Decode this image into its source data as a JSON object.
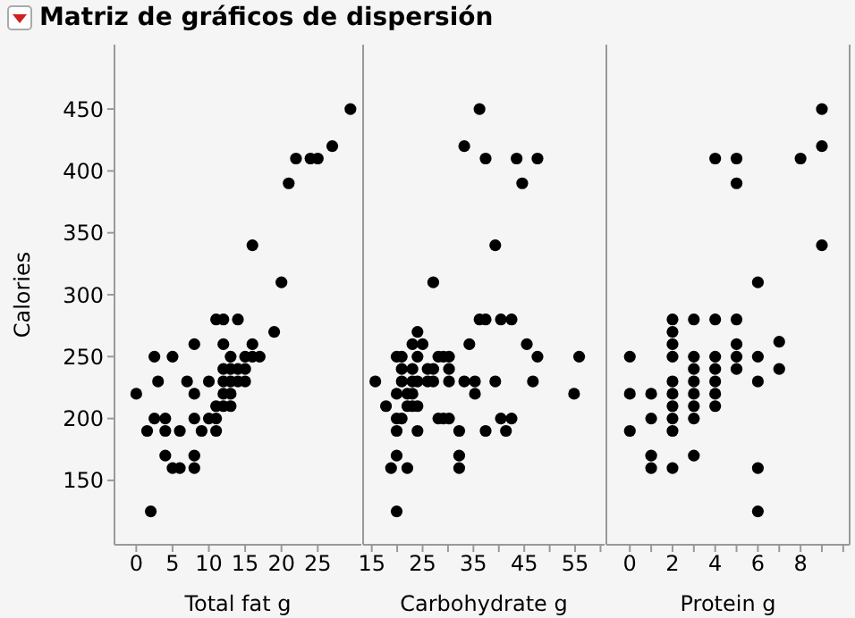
{
  "chart_data": [
    {
      "type": "scatter",
      "title": "Matriz de gráficos de dispersión",
      "xlabel": "Total fat g",
      "ylabel": "Calories",
      "color": "#000000",
      "marker": "circle",
      "grid": false,
      "x": [
        0,
        1.5,
        2,
        2.5,
        2.5,
        3,
        4,
        4,
        4,
        5,
        5,
        6,
        6,
        7,
        8,
        8,
        8,
        8,
        8,
        9,
        10,
        10,
        11,
        11,
        11,
        11,
        12,
        12,
        12,
        12,
        12,
        12,
        13,
        13,
        13,
        13,
        13,
        14,
        14,
        14,
        15,
        15,
        15,
        16,
        16,
        16,
        17,
        19,
        20,
        21,
        22,
        24,
        25,
        27,
        29.5
      ],
      "values": [
        220,
        190,
        125,
        250,
        200,
        230,
        200,
        190,
        170,
        250,
        160,
        160,
        190,
        230,
        260,
        220,
        200,
        170,
        160,
        190,
        230,
        200,
        280,
        210,
        200,
        190,
        280,
        260,
        240,
        230,
        220,
        210,
        250,
        240,
        230,
        220,
        210,
        280,
        240,
        230,
        250,
        240,
        230,
        340,
        260,
        250,
        250,
        270,
        310,
        390,
        410,
        410,
        410,
        420,
        450
      ],
      "xlim": [
        -3,
        31
      ],
      "xticks": [
        0,
        5,
        10,
        15,
        20,
        25
      ],
      "ylim": [
        98,
        502
      ],
      "yticks": [
        150,
        200,
        250,
        300,
        350,
        400,
        450
      ]
    },
    {
      "type": "scatter",
      "xlabel": "Carbohydrate g",
      "color": "#000000",
      "marker": "circle",
      "grid": false,
      "tick_labels": "x",
      "x": [
        36.2,
        33.2,
        37.4,
        43.5,
        47.6,
        44.6,
        39.3,
        27.1,
        36.2,
        37.4,
        40.4,
        42.5,
        24,
        23,
        25,
        34.2,
        45.5,
        19.9,
        20.9,
        24,
        28.1,
        29.1,
        30.2,
        47.6,
        55.8,
        20.9,
        23,
        26,
        27.1,
        30.2,
        15.7,
        20.9,
        23,
        24,
        26,
        27.1,
        30.2,
        33.2,
        35.3,
        39.3,
        46.7,
        19.9,
        22,
        23,
        35.3,
        54.8,
        17.8,
        22,
        23,
        24,
        19.9,
        20.9,
        28.1,
        29.1,
        30.2,
        40.4,
        42.5,
        19.9,
        24,
        32.2,
        37.4,
        41.4,
        19.9,
        32.2,
        18.8,
        22,
        32.2,
        19.9
      ],
      "values": [
        450,
        420,
        410,
        410,
        410,
        390,
        340,
        310,
        280,
        280,
        280,
        280,
        270,
        260,
        260,
        260,
        260,
        250,
        250,
        250,
        250,
        250,
        250,
        250,
        250,
        240,
        240,
        240,
        240,
        240,
        230,
        230,
        230,
        230,
        230,
        230,
        230,
        230,
        230,
        230,
        230,
        220,
        220,
        220,
        220,
        220,
        210,
        210,
        210,
        210,
        200,
        200,
        200,
        200,
        200,
        200,
        200,
        190,
        190,
        190,
        190,
        190,
        170,
        170,
        160,
        160,
        160,
        125
      ],
      "xlim": [
        13.3,
        60.8
      ],
      "xticks": [
        15,
        {
          "value": 20,
          "label": null
        },
        25,
        {
          "value": 30,
          "label": null
        },
        35,
        {
          "value": 40,
          "label": null
        },
        45,
        {
          "value": 50,
          "label": null
        },
        55,
        {
          "value": 60,
          "label": null
        }
      ],
      "ylim": [
        98,
        502
      ]
    },
    {
      "type": "scatter",
      "xlabel": "Protein g",
      "color": "#000000",
      "marker": "circle",
      "grid": false,
      "tick_labels": "x",
      "x": [
        9,
        9,
        4,
        5,
        8,
        5,
        9,
        6,
        2,
        3,
        4,
        5,
        2,
        2,
        5,
        7,
        0,
        2,
        3,
        4,
        5,
        6,
        3,
        4,
        5,
        7,
        2,
        3,
        4,
        6,
        0,
        1,
        2,
        3,
        4,
        2,
        3,
        4,
        1,
        2,
        3,
        0,
        2,
        1,
        3,
        1,
        2,
        6,
        6
      ],
      "values": [
        450,
        420,
        410,
        410,
        410,
        390,
        340,
        310,
        280,
        280,
        280,
        280,
        270,
        260,
        260,
        262,
        250,
        250,
        250,
        250,
        250,
        250,
        240,
        240,
        240,
        240,
        230,
        230,
        230,
        230,
        220,
        220,
        220,
        220,
        220,
        210,
        210,
        210,
        200,
        200,
        200,
        190,
        190,
        170,
        170,
        160,
        160,
        160,
        125
      ],
      "xlim": [
        -1.1,
        10.3
      ],
      "xticks": [
        0,
        {
          "value": 1,
          "label": null
        },
        2,
        {
          "value": 3,
          "label": null
        },
        4,
        {
          "value": 5,
          "label": null
        },
        6,
        {
          "value": 7,
          "label": null
        },
        8,
        {
          "value": 9,
          "label": null
        },
        {
          "value": 10,
          "label": null
        }
      ],
      "ylim": [
        98,
        502
      ]
    }
  ]
}
